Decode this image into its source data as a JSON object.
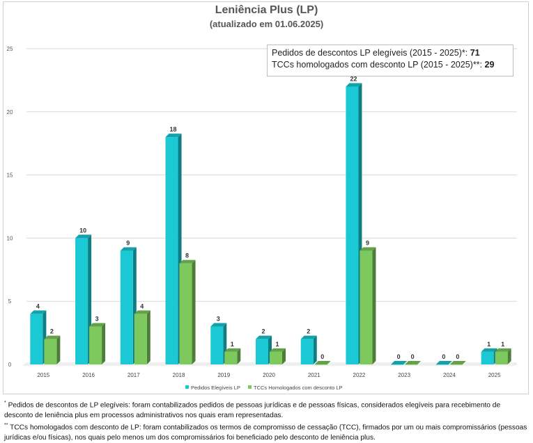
{
  "chart_data": {
    "type": "bar",
    "title": "Leniência Plus (LP)",
    "subtitle": "(atualizado em 01.06.2025)",
    "categories": [
      "2015",
      "2016",
      "2017",
      "2018",
      "2019",
      "2020",
      "2021",
      "2022",
      "2023",
      "2024",
      "2025"
    ],
    "series": [
      {
        "name": "Pedidos Elegíveis LP",
        "color": "#1ac9d4",
        "values": [
          4,
          10,
          9,
          18,
          3,
          2,
          2,
          22,
          0,
          0,
          1
        ]
      },
      {
        "name": "TCCs Homologados com desconto LP",
        "color": "#7dc95e",
        "values": [
          2,
          3,
          4,
          8,
          1,
          1,
          0,
          9,
          0,
          0,
          1
        ]
      }
    ],
    "ylim": [
      0,
      25
    ],
    "yticks": [
      0,
      5,
      10,
      15,
      20,
      25
    ],
    "grid": true,
    "legend": "bottom",
    "info_box": {
      "line1_label": "Pedidos de descontos LP elegíveis (2015 - 2025)*: ",
      "line1_value": "71",
      "line2_label": "TCCs homologados com desconto  LP (2015 - 2025)**: ",
      "line2_value": "29"
    }
  },
  "footnotes": {
    "note1_marker": "*",
    "note1": " Pedidos de descontos de LP elegíveis: foram contabilizados pedidos de pessoas jurídicas e de pessoas físicas, considerados elegíveis para recebimento de desconto de leniência plus em processos administrativos nos quais eram representadas.",
    "note2_marker": "**",
    "note2": " TCCs homologados com desconto de LP: foram contabilizados os termos de compromisso de cessação (TCC), firmados por um ou mais compromissários (pessoas jurídicas e/ou físicas), nos quais pelo menos um dos compromissários foi beneficiado pelo desconto de leniência plus."
  }
}
